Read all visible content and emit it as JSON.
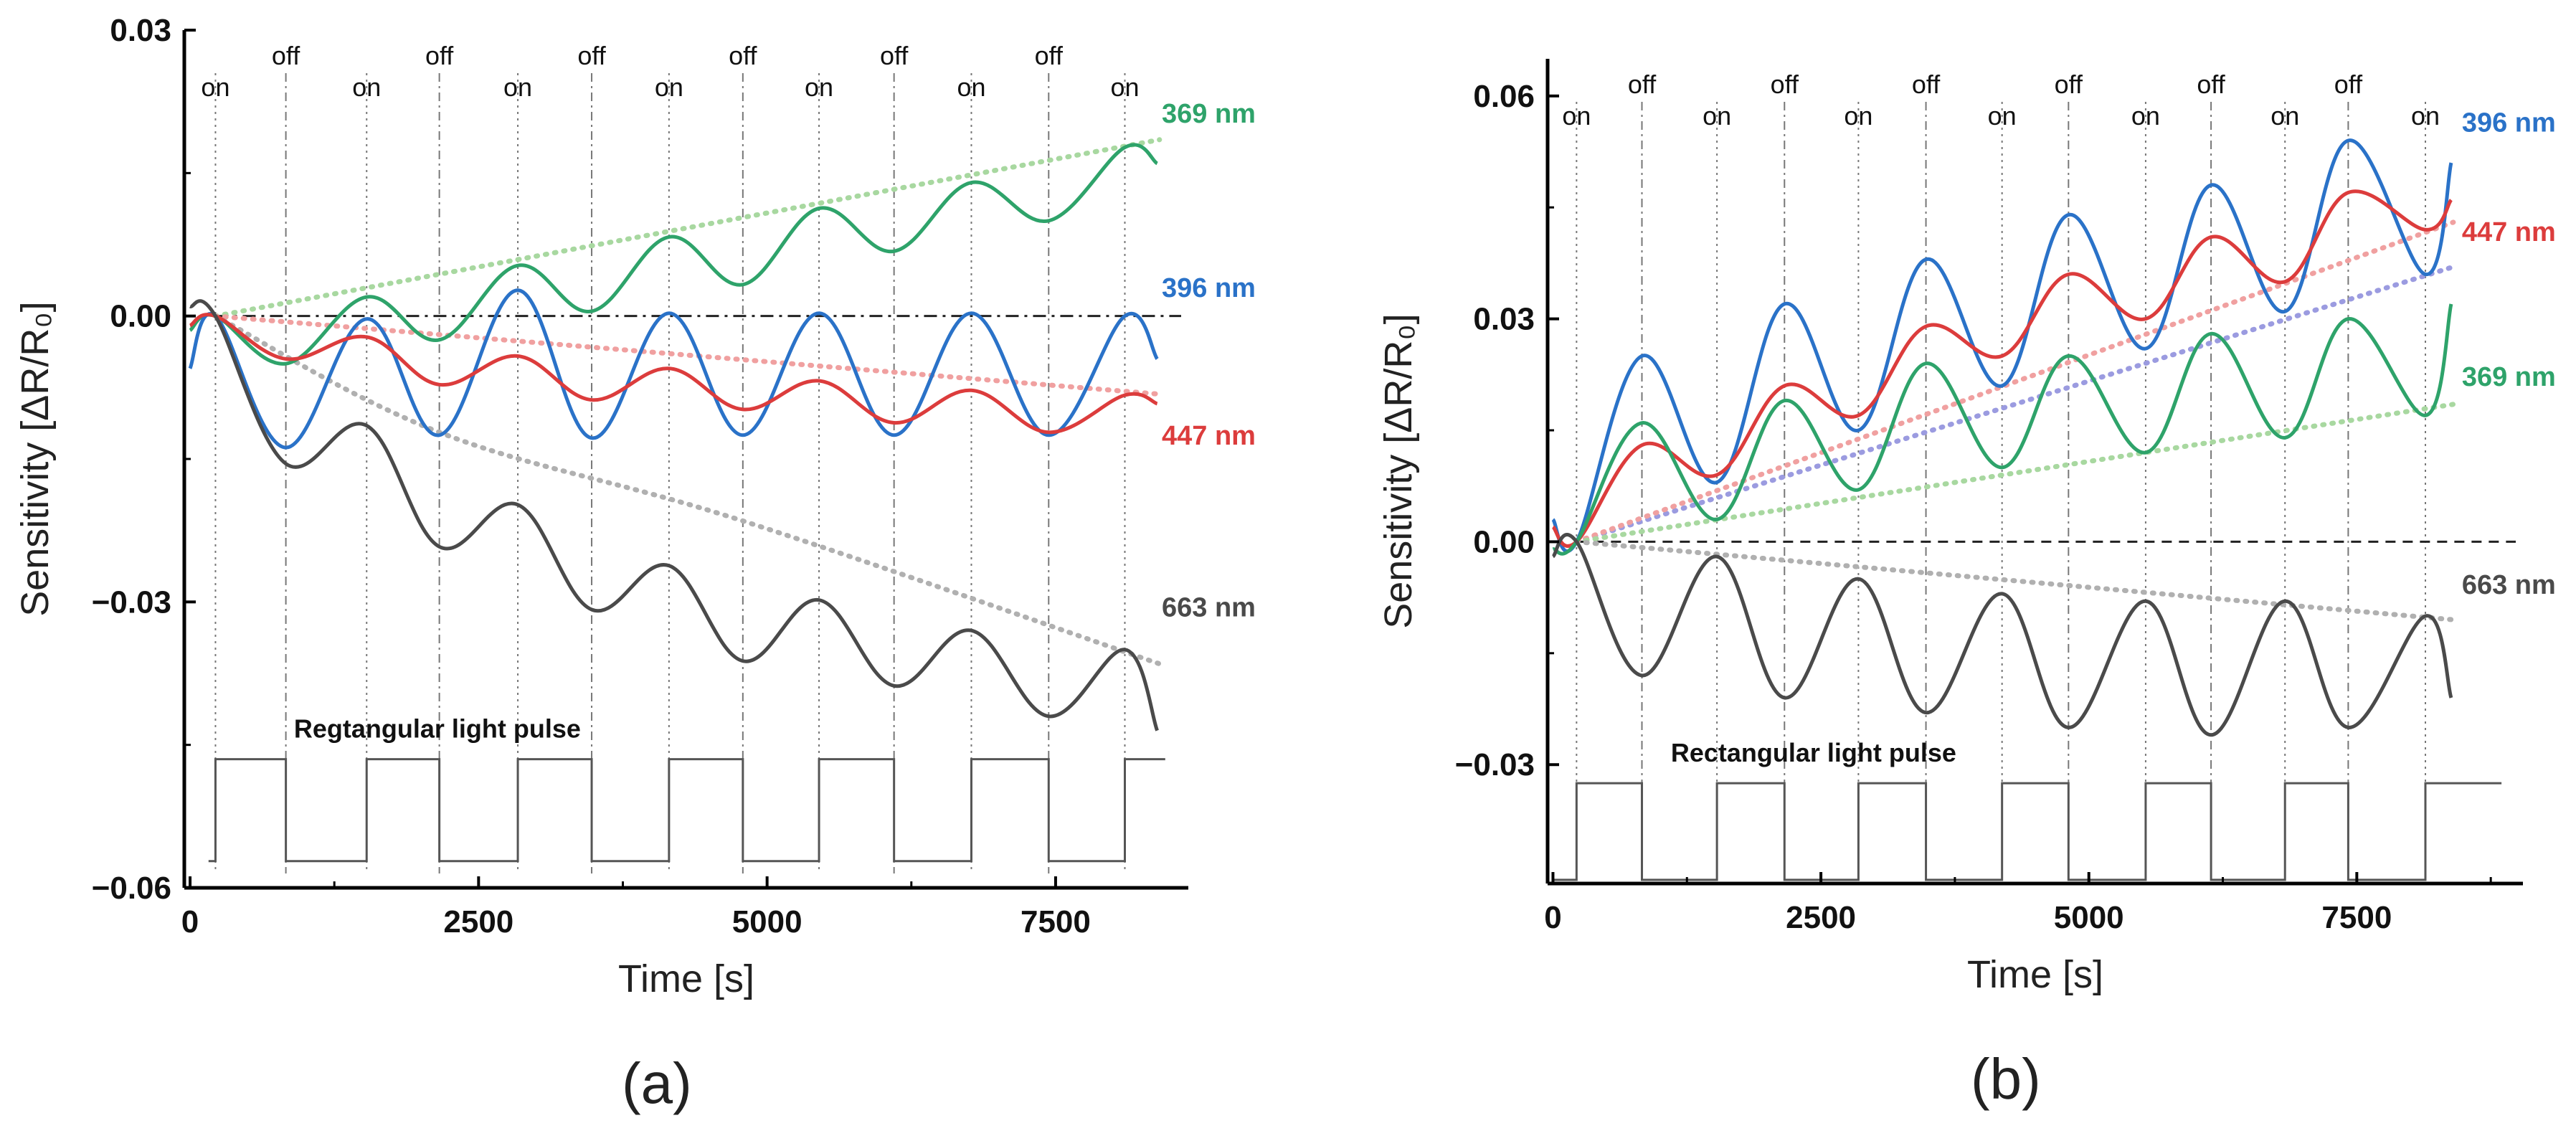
{
  "colors": {
    "369": "#2ea36a",
    "396": "#2a72c8",
    "447": "#dc3c3c",
    "663": "#4a4a4a",
    "pulse": "#555555",
    "trend_369": "#a8d8a0",
    "trend_396": "#9b9be0",
    "trend_447": "#f0a0a0",
    "trend_663": "#b0b0b0"
  },
  "chart_data": [
    {
      "type": "line",
      "panel_label": "(a)",
      "xlabel": "Time [s]",
      "ylabel": "Sensitivity [ΔR/R₀]",
      "xlim": [
        -50,
        8650
      ],
      "ylim": [
        -0.06,
        0.03
      ],
      "xticks": [
        0,
        2500,
        5000,
        7500
      ],
      "xtick_labels": [
        "0",
        "2500",
        "5000",
        "7500"
      ],
      "yticks": [
        0.03,
        0.0,
        -0.03,
        -0.06
      ],
      "ytick_labels": [
        "0.03",
        "0.00",
        "−0.03",
        "−0.06"
      ],
      "zero_line": true,
      "pulse_label": "Regtangular light pulse",
      "events": [
        {
          "x": 220,
          "label": "on"
        },
        {
          "x": 830,
          "label": "off"
        },
        {
          "x": 1530,
          "label": "on"
        },
        {
          "x": 2160,
          "label": "off"
        },
        {
          "x": 2840,
          "label": "on"
        },
        {
          "x": 3480,
          "label": "off"
        },
        {
          "x": 4150,
          "label": "on"
        },
        {
          "x": 4790,
          "label": "off"
        },
        {
          "x": 5450,
          "label": "on"
        },
        {
          "x": 6100,
          "label": "off"
        },
        {
          "x": 6770,
          "label": "on"
        },
        {
          "x": 7440,
          "label": "off"
        },
        {
          "x": 8100,
          "label": "on"
        }
      ],
      "pulse": {
        "high": -0.0465,
        "low": -0.0572,
        "start": 160,
        "end": 8450
      },
      "series": [
        {
          "name": "369 nm",
          "x": [
            0,
            220,
            830,
            1530,
            2160,
            2840,
            3480,
            4150,
            4790,
            5450,
            6100,
            6770,
            7440,
            8100,
            8380
          ],
          "y": [
            -0.0015,
            0.0,
            -0.005,
            0.002,
            -0.0025,
            0.0053,
            0.0005,
            0.0083,
            0.0033,
            0.0113,
            0.0068,
            0.014,
            0.01,
            0.0177,
            0.016
          ],
          "trend": [
            [
              220,
              0.0
            ],
            [
              8400,
              0.0185
            ]
          ]
        },
        {
          "name": "396 nm",
          "x": [
            0,
            220,
            830,
            1530,
            2160,
            2840,
            3480,
            4150,
            4790,
            5450,
            6100,
            6770,
            7440,
            8100,
            8380
          ],
          "y": [
            -0.0055,
            0.0,
            -0.0138,
            -0.0003,
            -0.0125,
            0.0027,
            -0.0128,
            0.0003,
            -0.0125,
            0.0003,
            -0.0125,
            0.0003,
            -0.0125,
            0.0,
            -0.0045
          ],
          "trend": null
        },
        {
          "name": "447 nm",
          "x": [
            0,
            220,
            830,
            1530,
            2160,
            2840,
            3480,
            4150,
            4790,
            5450,
            6100,
            6770,
            7440,
            8100,
            8380
          ],
          "y": [
            -0.001,
            0.0,
            -0.0045,
            -0.0022,
            -0.0072,
            -0.0042,
            -0.0088,
            -0.0055,
            -0.0098,
            -0.0068,
            -0.0112,
            -0.0078,
            -0.0122,
            -0.0083,
            -0.0092
          ],
          "trend": [
            [
              220,
              0.0
            ],
            [
              8400,
              -0.0082
            ]
          ]
        },
        {
          "name": "663 nm",
          "x": [
            0,
            220,
            830,
            1530,
            2160,
            2840,
            3480,
            4150,
            4790,
            5450,
            6100,
            6770,
            7440,
            8100,
            8380
          ],
          "y": [
            0.001,
            0.0,
            -0.0155,
            -0.0115,
            -0.0242,
            -0.0198,
            -0.0308,
            -0.0262,
            -0.0362,
            -0.0298,
            -0.0388,
            -0.033,
            -0.042,
            -0.035,
            -0.0435
          ],
          "trend": [
            [
              220,
              0.0
            ],
            [
              2160,
              -0.0122
            ],
            [
              4790,
              -0.0215
            ],
            [
              8400,
              -0.0365
            ]
          ]
        }
      ],
      "labels": [
        {
          "series": "369 nm",
          "text": "369 nm",
          "x": 8420,
          "y": 0.0203
        },
        {
          "series": "396 nm",
          "text": "396 nm",
          "x": 8420,
          "y": 0.002
        },
        {
          "series": "447 nm",
          "text": "447 nm",
          "x": 8420,
          "y": -0.0135
        },
        {
          "series": "663 nm",
          "text": "663 nm",
          "x": 8420,
          "y": -0.0315
        }
      ]
    },
    {
      "type": "line",
      "panel_label": "(b)",
      "xlabel": "Time [s]",
      "ylabel": "Sensitivity [ΔR/R₀]",
      "xlim": [
        -50,
        9050
      ],
      "ylim": [
        -0.046,
        0.065
      ],
      "xticks": [
        0,
        2500,
        5000,
        7500
      ],
      "xtick_labels": [
        "0",
        "2500",
        "5000",
        "7500"
      ],
      "yticks": [
        0.06,
        0.03,
        0.0,
        -0.03
      ],
      "ytick_labels": [
        "0.06",
        "0.03",
        "0.00",
        "−0.03"
      ],
      "zero_line": true,
      "pulse_label": "Rectangular light pulse",
      "events": [
        {
          "x": 220,
          "label": "on"
        },
        {
          "x": 830,
          "label": "off"
        },
        {
          "x": 1530,
          "label": "on"
        },
        {
          "x": 2160,
          "label": "off"
        },
        {
          "x": 2850,
          "label": "on"
        },
        {
          "x": 3480,
          "label": "off"
        },
        {
          "x": 4190,
          "label": "on"
        },
        {
          "x": 4810,
          "label": "off"
        },
        {
          "x": 5530,
          "label": "on"
        },
        {
          "x": 6140,
          "label": "off"
        },
        {
          "x": 6830,
          "label": "on"
        },
        {
          "x": 7420,
          "label": "off"
        },
        {
          "x": 8140,
          "label": "on"
        }
      ],
      "pulse": {
        "high": -0.0325,
        "low": -0.0455,
        "start": 0,
        "end": 8850
      },
      "series": [
        {
          "name": "396 nm",
          "x": [
            0,
            220,
            830,
            1530,
            2160,
            2850,
            3480,
            4190,
            4810,
            5530,
            6140,
            6830,
            7420,
            8140,
            8380
          ],
          "y": [
            0.003,
            0.0,
            0.025,
            0.008,
            0.032,
            0.015,
            0.038,
            0.021,
            0.044,
            0.026,
            0.048,
            0.031,
            0.054,
            0.036,
            0.051
          ],
          "trend": [
            [
              220,
              0.0
            ],
            [
              8400,
              0.037
            ]
          ]
        },
        {
          "name": "447 nm",
          "x": [
            0,
            220,
            830,
            1530,
            2160,
            2850,
            3480,
            4190,
            4810,
            5530,
            6140,
            6830,
            7420,
            8140,
            8380
          ],
          "y": [
            0.002,
            0.0,
            0.013,
            0.009,
            0.021,
            0.017,
            0.029,
            0.025,
            0.036,
            0.03,
            0.041,
            0.035,
            0.047,
            0.042,
            0.046
          ],
          "trend": [
            [
              220,
              0.0
            ],
            [
              8400,
              0.043
            ]
          ]
        },
        {
          "name": "369 nm",
          "x": [
            0,
            220,
            830,
            1530,
            2160,
            2850,
            3480,
            4190,
            4810,
            5530,
            6140,
            6830,
            7420,
            8140,
            8380
          ],
          "y": [
            -0.001,
            0.0,
            0.016,
            0.003,
            0.019,
            0.007,
            0.024,
            0.01,
            0.025,
            0.012,
            0.028,
            0.014,
            0.03,
            0.017,
            0.032
          ],
          "trend": [
            [
              220,
              0.0
            ],
            [
              8400,
              0.0185
            ]
          ]
        },
        {
          "name": "663 nm",
          "x": [
            0,
            220,
            830,
            1530,
            2160,
            2850,
            3480,
            4190,
            4810,
            5530,
            6140,
            6830,
            7420,
            8140,
            8380
          ],
          "y": [
            -0.002,
            0.0,
            -0.018,
            -0.002,
            -0.021,
            -0.005,
            -0.023,
            -0.007,
            -0.025,
            -0.008,
            -0.026,
            -0.008,
            -0.025,
            -0.01,
            -0.021
          ],
          "trend": [
            [
              220,
              0.0
            ],
            [
              8400,
              -0.0105
            ]
          ]
        }
      ],
      "labels": [
        {
          "series": "396 nm",
          "text": "396 nm",
          "x": 8480,
          "y": 0.0552
        },
        {
          "series": "447 nm",
          "text": "447 nm",
          "x": 8480,
          "y": 0.0405
        },
        {
          "series": "369 nm",
          "text": "369 nm",
          "x": 8480,
          "y": 0.021
        },
        {
          "series": "663 nm",
          "text": "663 nm",
          "x": 8480,
          "y": -0.007
        }
      ]
    }
  ]
}
